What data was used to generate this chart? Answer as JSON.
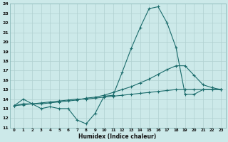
{
  "xlabel": "Humidex (Indice chaleur)",
  "xlim": [
    -0.5,
    23.5
  ],
  "ylim": [
    11,
    24
  ],
  "xticks": [
    0,
    1,
    2,
    3,
    4,
    5,
    6,
    7,
    8,
    9,
    10,
    11,
    12,
    13,
    14,
    15,
    16,
    17,
    18,
    19,
    20,
    21,
    22,
    23
  ],
  "yticks": [
    11,
    12,
    13,
    14,
    15,
    16,
    17,
    18,
    19,
    20,
    21,
    22,
    23,
    24
  ],
  "bg_color": "#cce9e9",
  "grid_color": "#b0d0d0",
  "line_color": "#1a6b6b",
  "line1_x": [
    0,
    1,
    2,
    3,
    4,
    5,
    6,
    7,
    8,
    9,
    10,
    11,
    12,
    13,
    14,
    15,
    16,
    17,
    18,
    19,
    20,
    21,
    22,
    23
  ],
  "line1_y": [
    13.3,
    14.0,
    13.5,
    13.0,
    13.2,
    13.0,
    13.0,
    11.8,
    11.4,
    12.5,
    14.3,
    14.4,
    16.8,
    19.3,
    21.5,
    23.5,
    23.7,
    22.0,
    19.4,
    14.5,
    14.5,
    15.0,
    15.0,
    15.0
  ],
  "line2_x": [
    0,
    1,
    2,
    3,
    4,
    5,
    6,
    7,
    8,
    9,
    10,
    11,
    12,
    13,
    14,
    15,
    16,
    17,
    18,
    19,
    20,
    21,
    22,
    23
  ],
  "line2_y": [
    13.3,
    13.5,
    13.5,
    13.5,
    13.6,
    13.7,
    13.8,
    13.9,
    14.1,
    14.2,
    14.4,
    14.7,
    15.0,
    15.3,
    15.7,
    16.1,
    16.6,
    17.1,
    17.5,
    17.5,
    16.5,
    15.5,
    15.2,
    15.0
  ],
  "line3_x": [
    0,
    1,
    2,
    3,
    4,
    5,
    6,
    7,
    8,
    9,
    10,
    11,
    12,
    13,
    14,
    15,
    16,
    17,
    18,
    19,
    20,
    21,
    22,
    23
  ],
  "line3_y": [
    13.3,
    13.4,
    13.5,
    13.6,
    13.7,
    13.8,
    13.9,
    14.0,
    14.0,
    14.1,
    14.2,
    14.3,
    14.4,
    14.5,
    14.6,
    14.7,
    14.8,
    14.9,
    15.0,
    15.0,
    15.0,
    15.0,
    15.0,
    15.0
  ]
}
